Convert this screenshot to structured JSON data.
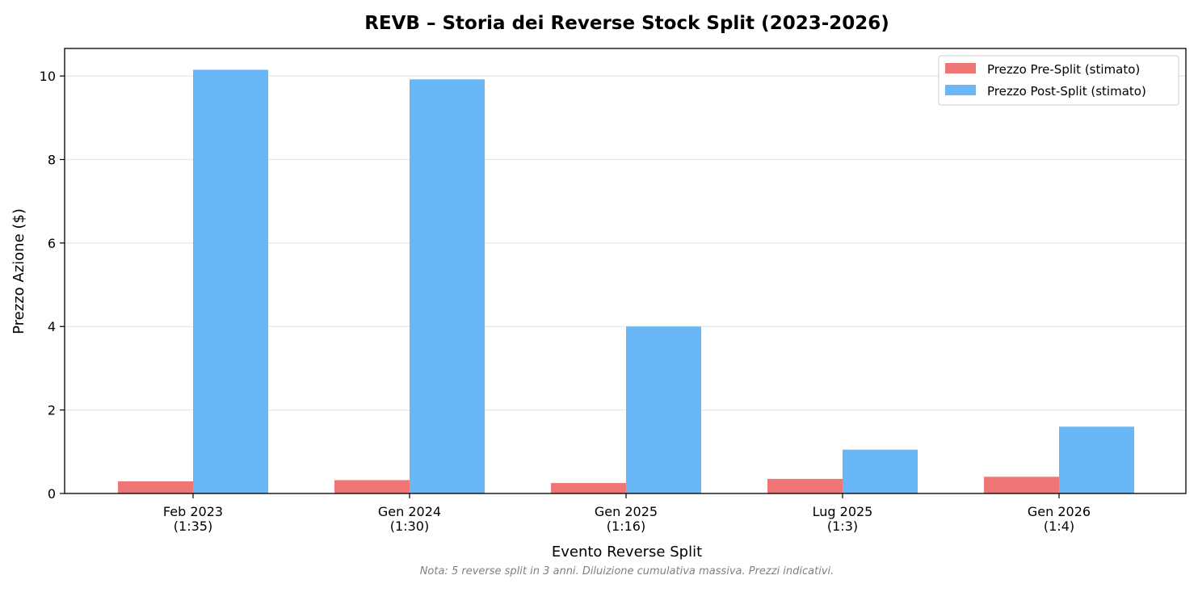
{
  "chart_data": {
    "type": "bar",
    "title": "REVB – Storia dei Reverse Stock Split (2023-2026)",
    "xlabel": "Evento Reverse Split",
    "ylabel": "Prezzo Azione ($)",
    "categories": [
      [
        "Feb 2023",
        "(1:35)"
      ],
      [
        "Gen 2024",
        "(1:30)"
      ],
      [
        "Gen 2025",
        "(1:16)"
      ],
      [
        "Lug 2025",
        "(1:3)"
      ],
      [
        "Gen 2026",
        "(1:4)"
      ]
    ],
    "series": [
      {
        "name": "Prezzo Pre-Split (stimato)",
        "color": "#f07575",
        "values": [
          0.29,
          0.32,
          0.25,
          0.35,
          0.4
        ]
      },
      {
        "name": "Prezzo Post-Split (stimato)",
        "color": "#69b7f6",
        "values": [
          10.15,
          9.92,
          4.0,
          1.05,
          1.6
        ]
      }
    ],
    "ylim": [
      0,
      10.66
    ],
    "yticks": [
      0,
      2,
      4,
      6,
      8,
      10
    ],
    "grid": "y",
    "legend": "top-right",
    "note": "Nota: 5 reverse split in 3 anni. Diluizione cumulativa massiva. Prezzi indicativi."
  }
}
